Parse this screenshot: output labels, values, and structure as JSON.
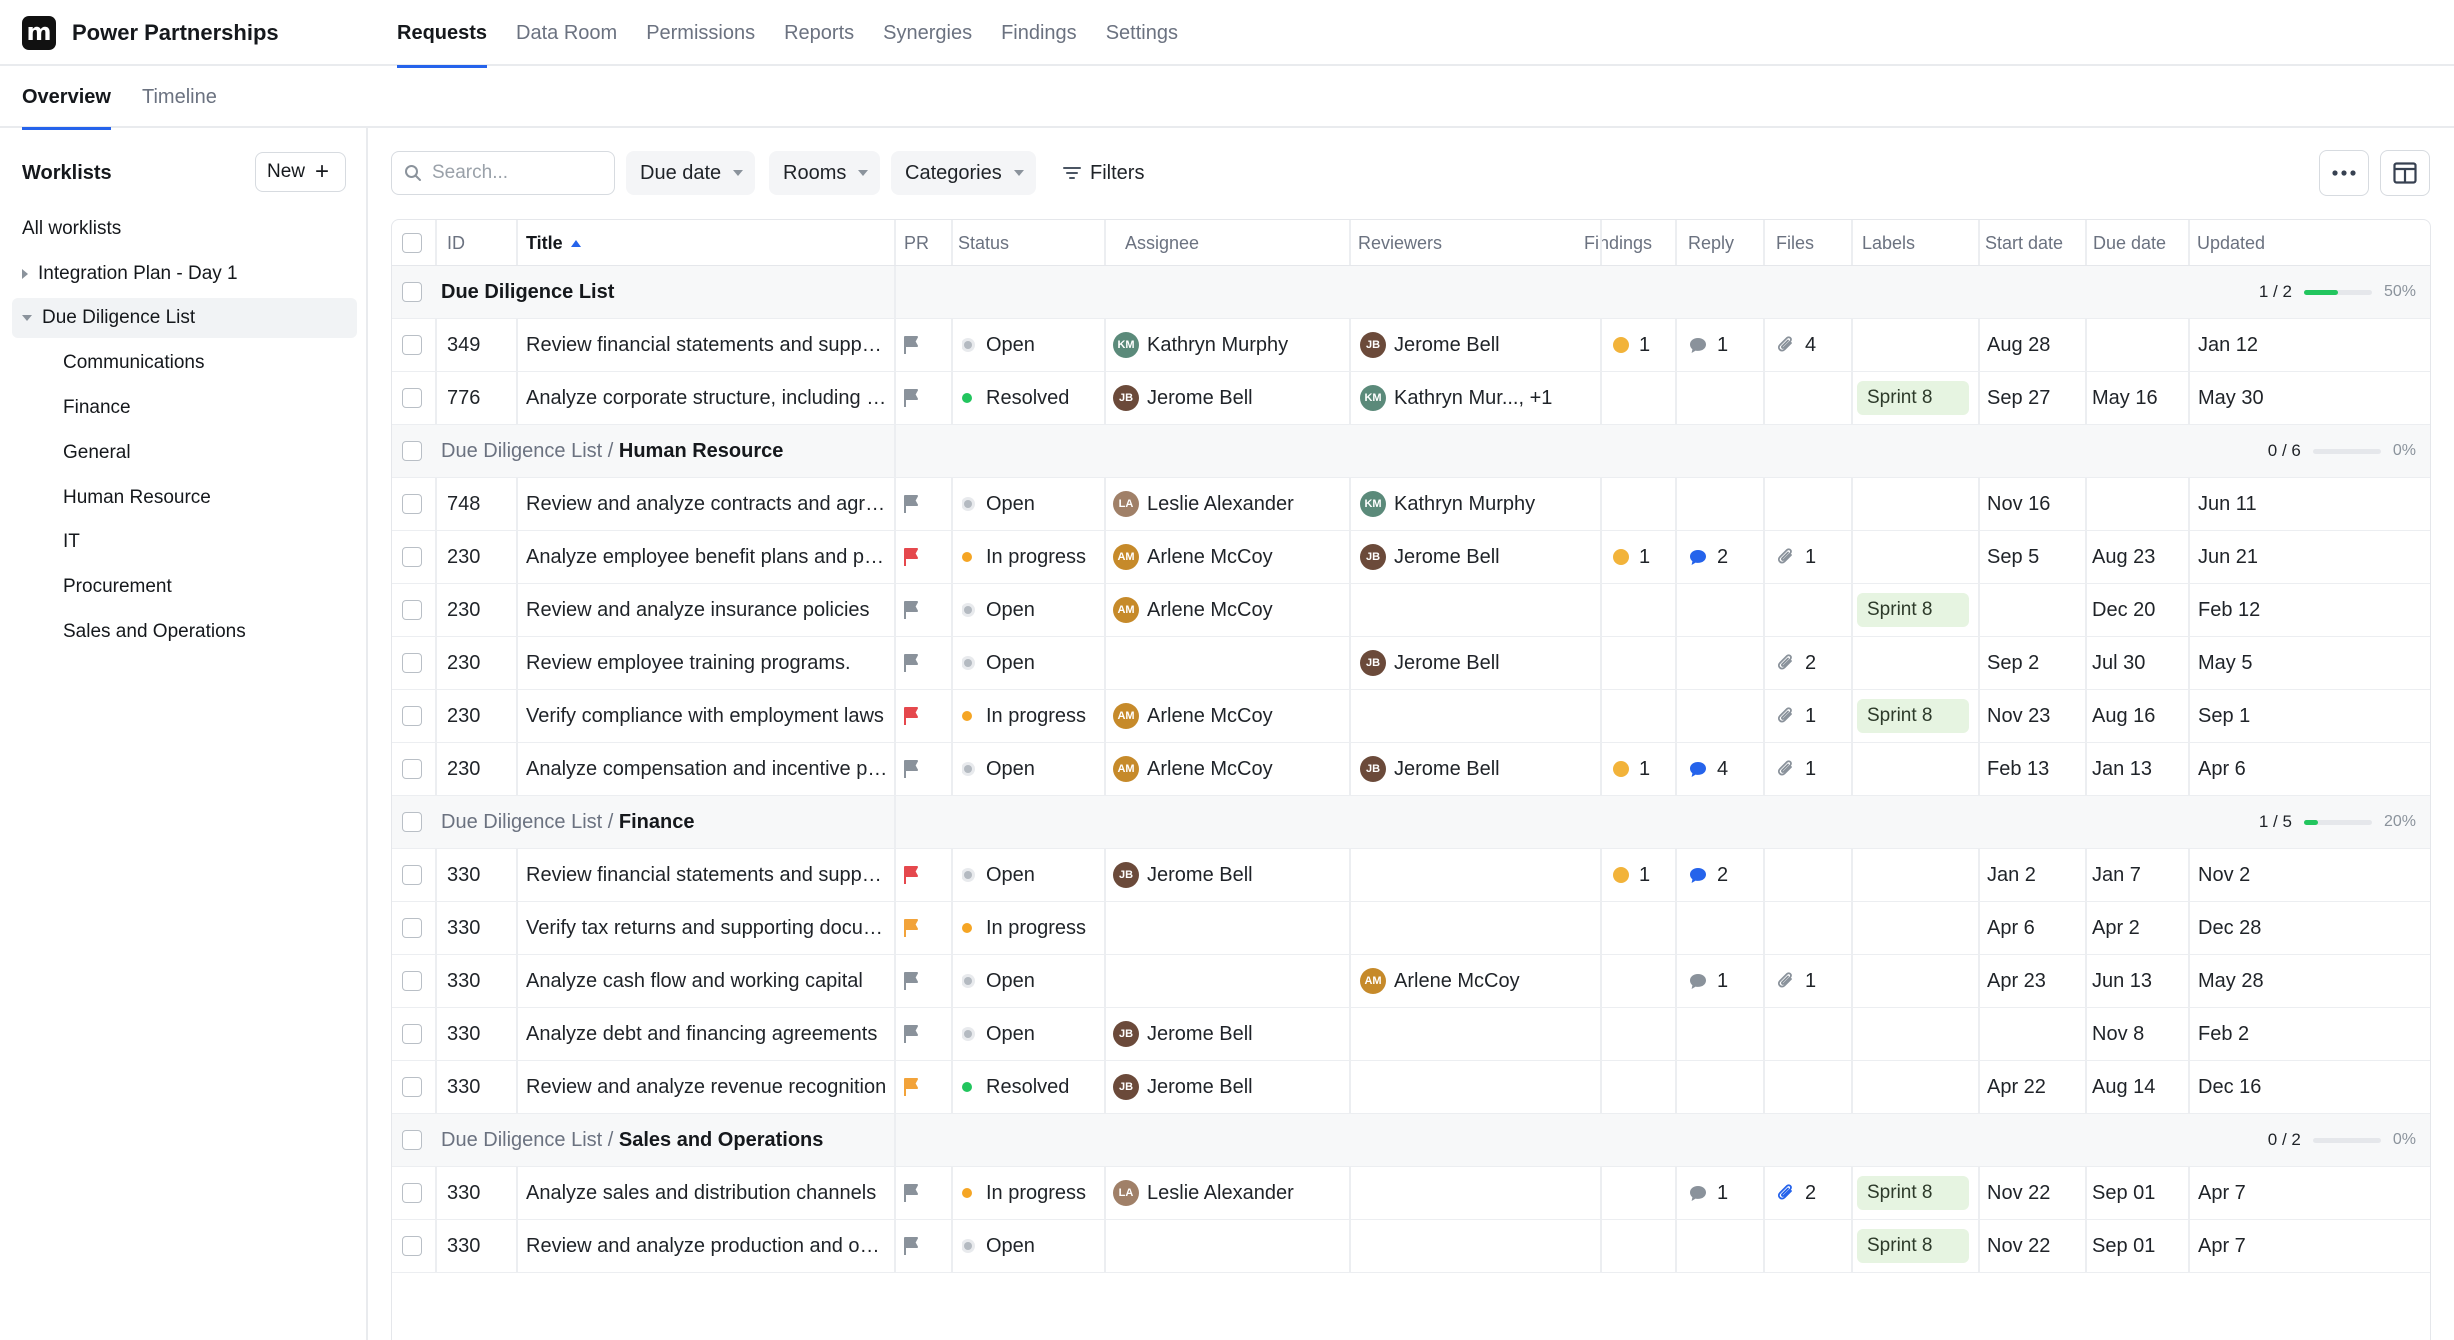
{
  "app": {
    "logo_letter": "m",
    "name": "Power Partnerships"
  },
  "nav": [
    "Requests",
    "Data Room",
    "Permissions",
    "Reports",
    "Synergies",
    "Findings",
    "Settings"
  ],
  "subnav": [
    "Overview",
    "Timeline"
  ],
  "sidebar": {
    "title": "Worklists",
    "new_label": "New",
    "items": [
      "All worklists",
      "Integration Plan - Day 1",
      "Due Diligence List",
      "Communications",
      "Finance",
      "General",
      "Human Resource",
      "IT",
      "Procurement",
      "Sales and Operations"
    ]
  },
  "toolbar": {
    "search_placeholder": "Search...",
    "dropdowns": [
      "Due date",
      "Rooms",
      "Categories"
    ],
    "filters_label": "Filters"
  },
  "table": {
    "headers": [
      "ID",
      "Title",
      "PR",
      "Status",
      "Assignee",
      "Reviewers",
      "Findings",
      "Reply",
      "Files",
      "Labels",
      "Start date",
      "Due date",
      "Updated"
    ],
    "groups": [
      {
        "prefix": "",
        "name": "Due Diligence List",
        "progress": "1 / 2",
        "fraction": 0.5,
        "pct": "50%",
        "rows": [
          {
            "id": "349",
            "title": "Review financial statements and supporting documents",
            "pr": "gray",
            "status": "Open",
            "assignee": "Kathryn Murphy",
            "reviewers": "Jerome Bell",
            "findings": "1",
            "reply": "1",
            "files": "4",
            "label": "",
            "start": "Aug 28",
            "due": "",
            "updated": "Jan 12"
          },
          {
            "id": "776",
            "title": "Analyze corporate structure, including subsidiaries",
            "pr": "gray",
            "status": "Resolved",
            "assignee": "Jerome Bell",
            "reviewers": "Kathryn Mur..., +1",
            "findings": "",
            "reply": "",
            "files": "",
            "label": "Sprint 8",
            "start": "Sep 27",
            "due": "May 16",
            "updated": "May 30"
          }
        ]
      },
      {
        "prefix": "Due Diligence List / ",
        "name": "Human Resource",
        "progress": "0 / 6",
        "fraction": 0,
        "pct": "0%",
        "rows": [
          {
            "id": "748",
            "title": "Review and analyze contracts and agreements",
            "pr": "gray",
            "status": "Open",
            "assignee": "Leslie Alexander",
            "reviewers": "Kathryn Murphy",
            "findings": "",
            "reply": "",
            "files": "",
            "label": "",
            "start": "Nov 16",
            "due": "",
            "updated": "Jun 11"
          },
          {
            "id": "230",
            "title": "Analyze employee benefit plans and policies",
            "pr": "red",
            "status": "In progress",
            "assignee": "Arlene McCoy",
            "reviewers": "Jerome Bell",
            "findings": "1",
            "reply": "2",
            "files": "1",
            "label": "",
            "start": "Sep 5",
            "due": "Aug 23",
            "updated": "Jun 21"
          },
          {
            "id": "230",
            "title": "Review and analyze insurance policies",
            "pr": "gray",
            "status": "Open",
            "assignee": "Arlene McCoy",
            "reviewers": "",
            "findings": "",
            "reply": "",
            "files": "",
            "label": "Sprint 8",
            "start": "",
            "due": "Dec 20",
            "updated": "Feb 12"
          },
          {
            "id": "230",
            "title": "Review employee training programs.",
            "pr": "gray",
            "status": "Open",
            "assignee": "",
            "reviewers": "Jerome Bell",
            "findings": "",
            "reply": "",
            "files": "2",
            "label": "",
            "start": "Sep 2",
            "due": "Jul 30",
            "updated": "May 5"
          },
          {
            "id": "230",
            "title": "Verify compliance with employment laws",
            "pr": "red",
            "status": "In progress",
            "assignee": "Arlene McCoy",
            "reviewers": "",
            "findings": "",
            "reply": "",
            "files": "1",
            "label": "Sprint 8",
            "start": "Nov 23",
            "due": "Aug 16",
            "updated": "Sep 1"
          },
          {
            "id": "230",
            "title": "Analyze compensation and incentive plans",
            "pr": "gray",
            "status": "Open",
            "assignee": "Arlene McCoy",
            "reviewers": "Jerome Bell",
            "findings": "1",
            "reply": "4",
            "files": "1",
            "label": "",
            "start": "Feb 13",
            "due": "Jan 13",
            "updated": "Apr 6"
          }
        ]
      },
      {
        "prefix": "Due Diligence List / ",
        "name": "Finance",
        "progress": "1 / 5",
        "fraction": 0.2,
        "pct": "20%",
        "rows": [
          {
            "id": "330",
            "title": "Review financial statements and supporting documents",
            "pr": "red",
            "status": "Open",
            "assignee": "Jerome Bell",
            "reviewers": "",
            "findings": "1",
            "reply": "2",
            "files": "",
            "label": "",
            "start": "Jan 2",
            "due": "Jan 7",
            "updated": "Nov 2"
          },
          {
            "id": "330",
            "title": "Verify tax returns and supporting documents",
            "pr": "orange",
            "status": "In progress",
            "assignee": "",
            "reviewers": "",
            "findings": "",
            "reply": "",
            "files": "",
            "label": "",
            "start": "Apr 6",
            "due": "Apr 2",
            "updated": "Dec 28"
          },
          {
            "id": "330",
            "title": "Analyze cash flow and working capital",
            "pr": "gray",
            "status": "Open",
            "assignee": "",
            "reviewers": "Arlene McCoy",
            "findings": "",
            "reply": "1",
            "files": "1",
            "label": "",
            "start": "Apr 23",
            "due": "Jun 13",
            "updated": "May 28"
          },
          {
            "id": "330",
            "title": "Analyze debt and financing agreements",
            "pr": "gray",
            "status": "Open",
            "assignee": "Jerome Bell",
            "reviewers": "",
            "findings": "",
            "reply": "",
            "files": "",
            "label": "",
            "start": "",
            "due": "Nov 8",
            "updated": "Feb 2"
          },
          {
            "id": "330",
            "title": "Review and analyze revenue recognition",
            "pr": "orange",
            "status": "Resolved",
            "assignee": "Jerome Bell",
            "reviewers": "",
            "findings": "",
            "reply": "",
            "files": "",
            "label": "",
            "start": "Apr 22",
            "due": "Aug 14",
            "updated": "Dec 16"
          }
        ]
      },
      {
        "prefix": "Due Diligence List / ",
        "name": "Sales and Operations",
        "progress": "0 / 2",
        "fraction": 0,
        "pct": "0%",
        "rows": [
          {
            "id": "330",
            "title": "Analyze sales and distribution channels",
            "pr": "gray",
            "status": "In progress",
            "assignee": "Leslie Alexander",
            "reviewers": "",
            "findings": "",
            "reply": "1",
            "files": "2",
            "files_active": true,
            "label": "Sprint 8",
            "start": "Nov 22",
            "due": "Sep 01",
            "updated": "Apr 7"
          },
          {
            "id": "330",
            "title": "Review and analyze production and operations",
            "pr": "gray",
            "status": "Open",
            "assignee": "",
            "reviewers": "",
            "findings": "",
            "reply": "",
            "files": "",
            "label": "Sprint 8",
            "start": "Nov 22",
            "due": "Sep 01",
            "updated": "Apr 7"
          }
        ]
      }
    ]
  },
  "colors": {
    "accent": "#2563eb",
    "flag_gray": "#8a929b",
    "flag_red": "#e5484d",
    "flag_orange": "#f2a33a",
    "status_open": "#b4bac1",
    "status_in_progress": "#f5a524",
    "status_resolved": "#22c55e",
    "reply_blue": "#2563eb",
    "reply_gray": "#8a929b"
  },
  "avatars": {
    "Kathryn Murphy": "#5b8a7a",
    "Jerome Bell": "#6b4a3a",
    "Leslie Alexander": "#a08068",
    "Arlene McCoy": "#c68a2a"
  }
}
